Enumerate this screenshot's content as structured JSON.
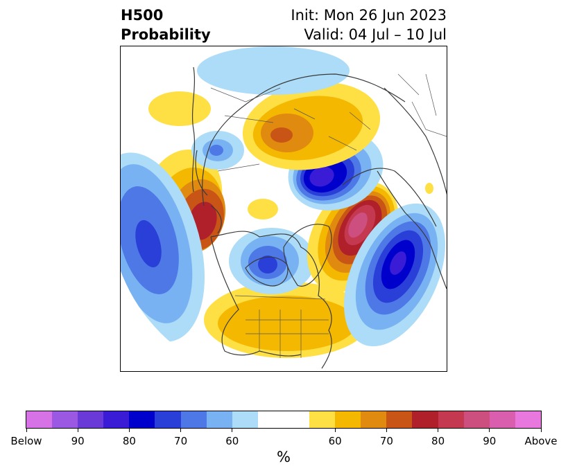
{
  "header": {
    "title_line1": "H500",
    "title_line2": "Probability",
    "init": "Init: Mon 26 Jun 2023",
    "valid": "Valid: 04 Jul – 10 Jul"
  },
  "colorbar": {
    "unit": "%",
    "colors": [
      "#d672e6",
      "#9b58e2",
      "#6a3ad8",
      "#3a1bd6",
      "#0000cc",
      "#2a3fd8",
      "#4d78e6",
      "#79b2f2",
      "#acdcf7",
      "#ffffff",
      "#ffffff",
      "#ffe044",
      "#f5b800",
      "#e08a10",
      "#c85516",
      "#b0202a",
      "#c43850",
      "#cc4f80",
      "#d95fae",
      "#e878de"
    ],
    "tick_labels": [
      "Below",
      "90",
      "80",
      "70",
      "60",
      "60",
      "70",
      "80",
      "90",
      "Above"
    ]
  },
  "map": {
    "projection": "north-polar-stereographic",
    "legend": "none",
    "anomaly_centers": [
      {
        "region": "Bering Sea / Kamchatka",
        "sign": "above",
        "max_pct": 80
      },
      {
        "region": "North Pacific",
        "sign": "below",
        "max_pct": 80
      },
      {
        "region": "Hudson Bay",
        "sign": "below",
        "max_pct": 80
      },
      {
        "region": "Continental United States",
        "sign": "above",
        "max_pct": 65
      },
      {
        "region": "Greenland / Iceland",
        "sign": "above",
        "max_pct": 90
      },
      {
        "region": "Northwest Europe",
        "sign": "below",
        "max_pct": 85
      },
      {
        "region": "Scandinavia / Barents Sea",
        "sign": "below",
        "max_pct": 90
      },
      {
        "region": "Central Siberia",
        "sign": "above",
        "max_pct": 75
      }
    ]
  }
}
